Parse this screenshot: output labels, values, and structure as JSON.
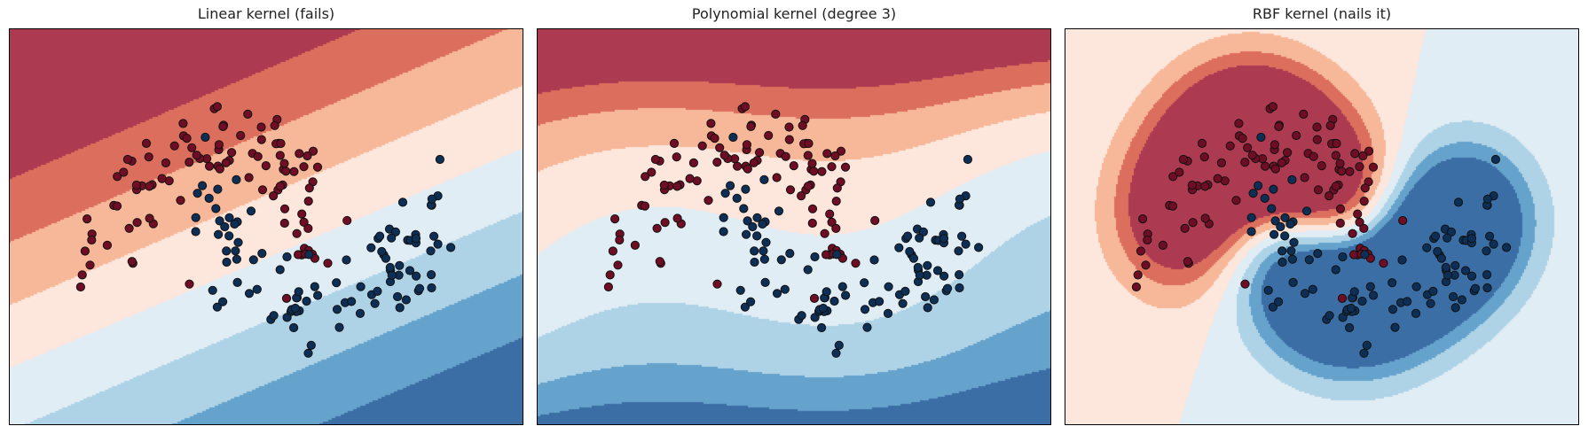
{
  "colors": {
    "red_levels": [
      "#fde6dc",
      "#f7b799",
      "#dc6e5d",
      "#ac3a51"
    ],
    "blue_levels": [
      "#e1edf5",
      "#aed3e7",
      "#66a3cc",
      "#3b6ea5"
    ],
    "neutral": "#f7f7f7",
    "class_red": "#6e0d23",
    "class_blue": "#0d2f55",
    "marker_edge": "#111111",
    "frame": "#000000"
  },
  "chart_data": [
    {
      "type": "scatter",
      "subtype": "decision-boundary",
      "title": "Linear kernel (fails)",
      "kernel": "linear",
      "xlim": [
        -2.0,
        3.0
      ],
      "ylim": [
        -1.5,
        2.0
      ],
      "ticks": "hidden",
      "fill": "filled decision-function contours (red = class 0, blue = class 1)",
      "series": [
        {
          "name": "",
          "class": "red"
        },
        {
          "name": "",
          "class": "blue"
        }
      ]
    },
    {
      "type": "scatter",
      "subtype": "decision-boundary",
      "title": "Polynomial kernel (degree 3)",
      "kernel": "poly",
      "degree": 3,
      "xlim": [
        -2.0,
        3.0
      ],
      "ylim": [
        -1.5,
        2.0
      ],
      "ticks": "hidden",
      "fill": "filled decision-function contours (red = class 0, blue = class 1)",
      "series": [
        {
          "name": "",
          "class": "red"
        },
        {
          "name": "",
          "class": "blue"
        }
      ]
    },
    {
      "type": "scatter",
      "subtype": "decision-boundary",
      "title": "RBF kernel (nails it)",
      "kernel": "rbf",
      "xlim": [
        -2.0,
        3.0
      ],
      "ylim": [
        -1.5,
        2.0
      ],
      "ticks": "hidden",
      "fill": "filled decision-function contours (red = class 0, blue = class 1)",
      "series": [
        {
          "name": "",
          "class": "red"
        },
        {
          "name": "",
          "class": "blue"
        }
      ]
    }
  ],
  "dataset": {
    "description": "two interleaving half-moons",
    "class_red": [
      [
        -0.96,
        0.11
      ],
      [
        -1.0,
        0.5
      ],
      [
        -0.8,
        0.4
      ],
      [
        -0.7,
        0.9
      ],
      [
        -0.65,
        0.6
      ],
      [
        -0.5,
        1.1
      ],
      [
        -0.3,
        1.2
      ],
      [
        -0.1,
        1.15
      ],
      [
        0.1,
        1.05
      ],
      [
        0.25,
        0.95
      ],
      [
        0.45,
        0.7
      ],
      [
        0.55,
        0.5
      ],
      [
        0.7,
        0.35
      ],
      [
        0.85,
        0.2
      ],
      [
        -0.85,
        0.25
      ],
      [
        -0.55,
        0.8
      ],
      [
        -0.2,
        1.0
      ],
      [
        0.05,
        0.85
      ],
      [
        0.3,
        0.8
      ],
      [
        0.6,
        0.3
      ]
    ],
    "class_blue": [
      [
        0.15,
        0.15
      ],
      [
        0.2,
        -0.1
      ],
      [
        0.3,
        -0.3
      ],
      [
        0.45,
        -0.4
      ],
      [
        0.6,
        -0.45
      ],
      [
        0.8,
        -0.5
      ],
      [
        1.0,
        -0.45
      ],
      [
        1.2,
        -0.4
      ],
      [
        1.4,
        -0.25
      ],
      [
        1.55,
        -0.05
      ],
      [
        1.7,
        0.15
      ],
      [
        1.8,
        0.35
      ],
      [
        1.9,
        0.5
      ],
      [
        2.0,
        0.2
      ],
      [
        0.35,
        0.05
      ],
      [
        0.7,
        -0.2
      ],
      [
        1.1,
        -0.2
      ],
      [
        1.5,
        0.1
      ],
      [
        1.75,
        0.0
      ],
      [
        2.05,
        0.4
      ]
    ]
  }
}
